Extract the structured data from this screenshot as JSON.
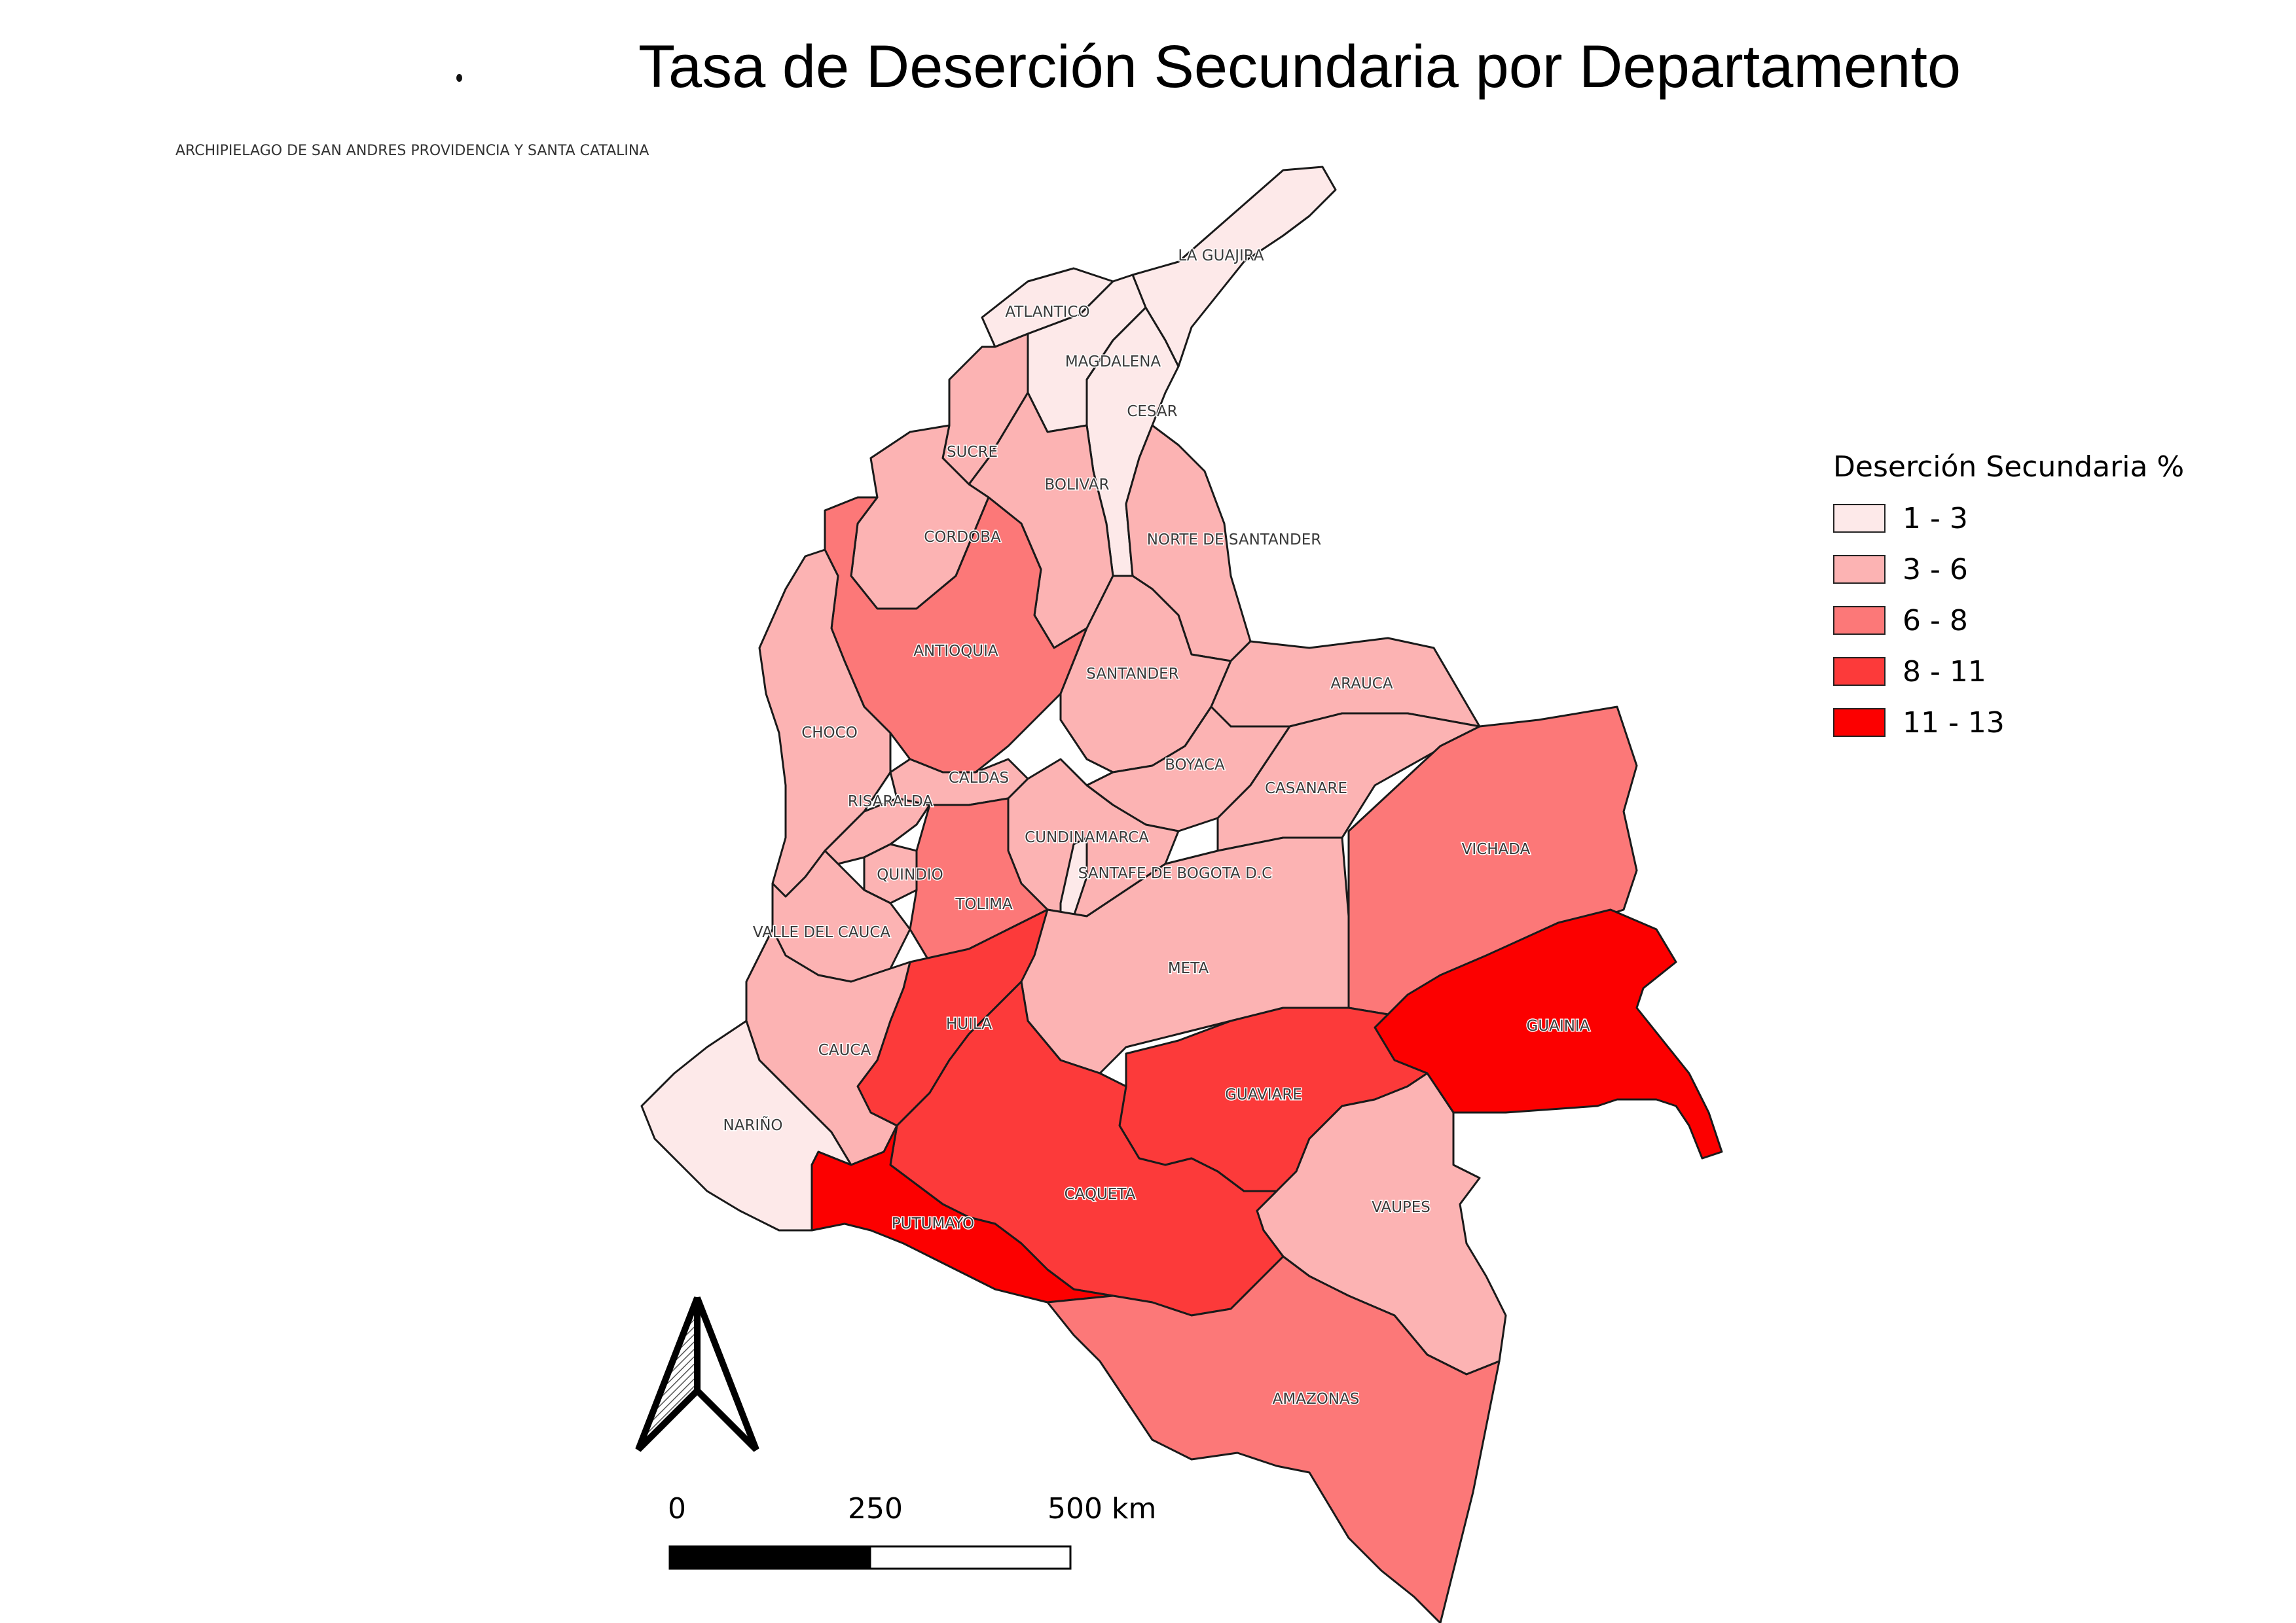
{
  "title": "Tasa de Deserción Secundaria por Departamento",
  "island_label": "ARCHIPIELAGO DE SAN ANDRES PROVIDENCIA Y SANTA CATALINA",
  "colors": {
    "class_1": "#fde9e9",
    "class_2": "#fcb3b3",
    "class_3": "#fc7878",
    "class_4": "#fc3a3a",
    "class_5": "#fc0000",
    "outline": "#1a1a1a"
  },
  "legend": {
    "title": "Deserción Secundaria %",
    "items": [
      {
        "label": "1 - 3",
        "color": "#fde9e9"
      },
      {
        "label": "3 - 6",
        "color": "#fcb3b3"
      },
      {
        "label": "6 - 8",
        "color": "#fc7878"
      },
      {
        "label": "8 - 11",
        "color": "#fc3a3a"
      },
      {
        "label": "11 - 13",
        "color": "#fc0000"
      }
    ]
  },
  "departments": {
    "la_guajira": {
      "name": "LA GUAJIRA",
      "class": 1
    },
    "atlantico": {
      "name": "ATLANTICO",
      "class": 1
    },
    "magdalena": {
      "name": "MAGDALENA",
      "class": 1
    },
    "cesar": {
      "name": "CESAR",
      "class": 1
    },
    "sucre": {
      "name": "SUCRE",
      "class": 2
    },
    "bolivar": {
      "name": "BOLIVAR",
      "class": 2
    },
    "cordoba": {
      "name": "CORDOBA",
      "class": 2
    },
    "norte_santander": {
      "name": "NORTE DE SANTANDER",
      "class": 2
    },
    "antioquia": {
      "name": "ANTIOQUIA",
      "class": 3
    },
    "santander": {
      "name": "SANTANDER",
      "class": 2
    },
    "arauca": {
      "name": "ARAUCA",
      "class": 2
    },
    "choco": {
      "name": "CHOCO",
      "class": 2
    },
    "caldas": {
      "name": "CALDAS",
      "class": 2
    },
    "boyaca": {
      "name": "BOYACA",
      "class": 2
    },
    "casanare": {
      "name": "CASANARE",
      "class": 2
    },
    "risaralda": {
      "name": "RISARALDA",
      "class": 2
    },
    "cundinamarca": {
      "name": "CUNDINAMARCA",
      "class": 2
    },
    "vichada": {
      "name": "VICHADA",
      "class": 3
    },
    "quindio": {
      "name": "QUINDIO",
      "class": 2
    },
    "bogota": {
      "name": "SANTAFE DE BOGOTA D.C",
      "class": 1
    },
    "tolima": {
      "name": "TOLIMA",
      "class": 3
    },
    "valle": {
      "name": "VALLE DEL CAUCA",
      "class": 2
    },
    "meta": {
      "name": "META",
      "class": 2
    },
    "guainia": {
      "name": "GUAINIA",
      "class": 5
    },
    "huila": {
      "name": "HUILA",
      "class": 4
    },
    "cauca": {
      "name": "CAUCA",
      "class": 2
    },
    "guaviare": {
      "name": "GUAVIARE",
      "class": 4
    },
    "narino": {
      "name": "NARIÑO",
      "class": 1
    },
    "vaupes": {
      "name": "VAUPES",
      "class": 2
    },
    "caqueta": {
      "name": "CAQUETA",
      "class": 4
    },
    "putumayo": {
      "name": "PUTUMAYO",
      "class": 5
    },
    "amazonas": {
      "name": "AMAZONAS",
      "class": 3
    }
  },
  "scale_bar": {
    "tick_0": "0",
    "tick_1": "250",
    "tick_2": "500 km"
  },
  "north_arrow": {
    "icon": "north-arrow-icon"
  }
}
